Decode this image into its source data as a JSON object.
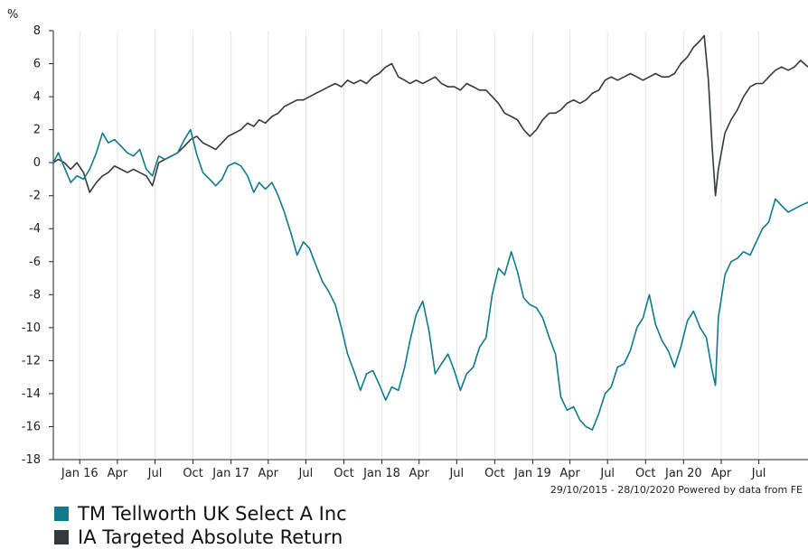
{
  "chart_data": {
    "type": "line",
    "unit_label": "%",
    "ylim": [
      -18,
      8
    ],
    "yticks": [
      8,
      6,
      4,
      2,
      0,
      -2,
      -4,
      -6,
      -8,
      -10,
      -12,
      -14,
      -16,
      -18
    ],
    "xlim": [
      "2015-10-29",
      "2020-10-28"
    ],
    "xticks": [
      {
        "date": "2016-01-01",
        "label": "Jan 16"
      },
      {
        "date": "2016-04-01",
        "label": "Apr"
      },
      {
        "date": "2016-07-01",
        "label": "Jul"
      },
      {
        "date": "2016-10-01",
        "label": "Oct"
      },
      {
        "date": "2017-01-01",
        "label": "Jan 17"
      },
      {
        "date": "2017-04-01",
        "label": "Apr"
      },
      {
        "date": "2017-07-01",
        "label": "Jul"
      },
      {
        "date": "2017-10-01",
        "label": "Oct"
      },
      {
        "date": "2018-01-01",
        "label": "Jan 18"
      },
      {
        "date": "2018-04-01",
        "label": "Apr"
      },
      {
        "date": "2018-07-01",
        "label": "Jul"
      },
      {
        "date": "2018-10-01",
        "label": "Oct"
      },
      {
        "date": "2019-01-01",
        "label": "Jan 19"
      },
      {
        "date": "2019-04-01",
        "label": "Apr"
      },
      {
        "date": "2019-07-01",
        "label": "Jul"
      },
      {
        "date": "2019-10-01",
        "label": "Oct"
      },
      {
        "date": "2020-01-01",
        "label": "Jan 20"
      },
      {
        "date": "2020-04-01",
        "label": "Apr"
      },
      {
        "date": "2020-07-01",
        "label": "Jul"
      }
    ],
    "credit": "29/10/2015 - 28/10/2020 Powered by data from FE",
    "grid": "vertical",
    "legend_position": "bottom-left",
    "series": [
      {
        "name": "TM Tellworth UK Select A Inc",
        "color": "#0e7a8c",
        "points": [
          [
            "2015-10-29",
            0.0
          ],
          [
            "2015-11-10",
            0.6
          ],
          [
            "2015-11-25",
            -0.3
          ],
          [
            "2015-12-10",
            -1.2
          ],
          [
            "2015-12-25",
            -0.8
          ],
          [
            "2016-01-10",
            -1.0
          ],
          [
            "2016-01-25",
            -0.4
          ],
          [
            "2016-02-10",
            0.6
          ],
          [
            "2016-02-25",
            1.8
          ],
          [
            "2016-03-10",
            1.2
          ],
          [
            "2016-03-25",
            1.4
          ],
          [
            "2016-04-10",
            1.0
          ],
          [
            "2016-04-25",
            0.6
          ],
          [
            "2016-05-10",
            0.4
          ],
          [
            "2016-05-25",
            0.8
          ],
          [
            "2016-06-10",
            -0.4
          ],
          [
            "2016-06-25",
            -0.8
          ],
          [
            "2016-07-10",
            0.4
          ],
          [
            "2016-07-25",
            0.2
          ],
          [
            "2016-08-10",
            0.4
          ],
          [
            "2016-08-25",
            0.6
          ],
          [
            "2016-09-10",
            1.4
          ],
          [
            "2016-09-25",
            2.0
          ],
          [
            "2016-10-10",
            0.5
          ],
          [
            "2016-10-25",
            -0.6
          ],
          [
            "2016-11-10",
            -1.0
          ],
          [
            "2016-11-25",
            -1.4
          ],
          [
            "2016-12-10",
            -1.0
          ],
          [
            "2016-12-25",
            -0.2
          ],
          [
            "2017-01-10",
            0.0
          ],
          [
            "2017-01-25",
            -0.2
          ],
          [
            "2017-02-10",
            -0.8
          ],
          [
            "2017-02-25",
            -1.8
          ],
          [
            "2017-03-10",
            -1.2
          ],
          [
            "2017-03-25",
            -1.6
          ],
          [
            "2017-04-10",
            -1.2
          ],
          [
            "2017-04-25",
            -2.0
          ],
          [
            "2017-05-10",
            -3.0
          ],
          [
            "2017-05-25",
            -4.2
          ],
          [
            "2017-06-10",
            -5.6
          ],
          [
            "2017-06-25",
            -4.8
          ],
          [
            "2017-07-10",
            -5.2
          ],
          [
            "2017-07-25",
            -6.2
          ],
          [
            "2017-08-10",
            -7.2
          ],
          [
            "2017-08-25",
            -7.8
          ],
          [
            "2017-09-10",
            -8.6
          ],
          [
            "2017-09-25",
            -10.0
          ],
          [
            "2017-10-10",
            -11.6
          ],
          [
            "2017-10-25",
            -12.6
          ],
          [
            "2017-11-10",
            -13.8
          ],
          [
            "2017-11-25",
            -12.8
          ],
          [
            "2017-12-10",
            -12.6
          ],
          [
            "2017-12-25",
            -13.4
          ],
          [
            "2018-01-10",
            -14.4
          ],
          [
            "2018-01-25",
            -13.6
          ],
          [
            "2018-02-10",
            -13.8
          ],
          [
            "2018-02-25",
            -12.4
          ],
          [
            "2018-03-10",
            -10.8
          ],
          [
            "2018-03-25",
            -9.2
          ],
          [
            "2018-04-10",
            -8.4
          ],
          [
            "2018-04-25",
            -10.2
          ],
          [
            "2018-05-10",
            -12.8
          ],
          [
            "2018-05-25",
            -12.2
          ],
          [
            "2018-06-10",
            -11.6
          ],
          [
            "2018-06-25",
            -12.6
          ],
          [
            "2018-07-10",
            -13.8
          ],
          [
            "2018-07-25",
            -12.8
          ],
          [
            "2018-08-10",
            -12.4
          ],
          [
            "2018-08-25",
            -11.2
          ],
          [
            "2018-09-10",
            -10.6
          ],
          [
            "2018-09-25",
            -8.0
          ],
          [
            "2018-10-10",
            -6.4
          ],
          [
            "2018-10-25",
            -6.8
          ],
          [
            "2018-11-10",
            -5.4
          ],
          [
            "2018-11-25",
            -6.6
          ],
          [
            "2018-12-10",
            -8.2
          ],
          [
            "2018-12-25",
            -8.6
          ],
          [
            "2019-01-10",
            -8.8
          ],
          [
            "2019-01-25",
            -9.4
          ],
          [
            "2019-02-10",
            -10.6
          ],
          [
            "2019-02-25",
            -11.6
          ],
          [
            "2019-03-10",
            -14.2
          ],
          [
            "2019-03-25",
            -15.0
          ],
          [
            "2019-04-10",
            -14.8
          ],
          [
            "2019-04-25",
            -15.6
          ],
          [
            "2019-05-10",
            -16.0
          ],
          [
            "2019-05-25",
            -16.2
          ],
          [
            "2019-06-10",
            -15.2
          ],
          [
            "2019-06-25",
            -14.0
          ],
          [
            "2019-07-10",
            -13.6
          ],
          [
            "2019-07-25",
            -12.4
          ],
          [
            "2019-08-10",
            -12.2
          ],
          [
            "2019-08-25",
            -11.4
          ],
          [
            "2019-09-10",
            -10.0
          ],
          [
            "2019-09-25",
            -9.4
          ],
          [
            "2019-10-10",
            -8.0
          ],
          [
            "2019-10-25",
            -9.8
          ],
          [
            "2019-11-10",
            -10.8
          ],
          [
            "2019-11-25",
            -11.4
          ],
          [
            "2019-12-10",
            -12.4
          ],
          [
            "2019-12-25",
            -11.2
          ],
          [
            "2020-01-10",
            -9.6
          ],
          [
            "2020-01-25",
            -9.0
          ],
          [
            "2020-02-10",
            -10.0
          ],
          [
            "2020-02-25",
            -10.6
          ],
          [
            "2020-03-10",
            -12.6
          ],
          [
            "2020-03-18",
            -13.5
          ],
          [
            "2020-03-25",
            -9.4
          ],
          [
            "2020-04-10",
            -6.8
          ],
          [
            "2020-04-25",
            -6.0
          ],
          [
            "2020-05-10",
            -5.8
          ],
          [
            "2020-05-25",
            -5.4
          ],
          [
            "2020-06-10",
            -5.6
          ],
          [
            "2020-06-25",
            -4.8
          ],
          [
            "2020-07-10",
            -4.0
          ],
          [
            "2020-07-25",
            -3.6
          ],
          [
            "2020-08-10",
            -2.2
          ],
          [
            "2020-08-25",
            -2.6
          ],
          [
            "2020-09-10",
            -3.0
          ],
          [
            "2020-09-25",
            -2.8
          ],
          [
            "2020-10-10",
            -2.6
          ],
          [
            "2020-10-28",
            -2.4
          ]
        ]
      },
      {
        "name": "IA Targeted Absolute Return",
        "color": "#333a3b",
        "points": [
          [
            "2015-10-29",
            0.0
          ],
          [
            "2015-11-10",
            0.2
          ],
          [
            "2015-11-25",
            0.0
          ],
          [
            "2015-12-10",
            -0.4
          ],
          [
            "2015-12-25",
            0.0
          ],
          [
            "2016-01-10",
            -0.6
          ],
          [
            "2016-01-25",
            -1.8
          ],
          [
            "2016-02-10",
            -1.2
          ],
          [
            "2016-02-25",
            -0.8
          ],
          [
            "2016-03-10",
            -0.6
          ],
          [
            "2016-03-25",
            -0.2
          ],
          [
            "2016-04-10",
            -0.4
          ],
          [
            "2016-04-25",
            -0.6
          ],
          [
            "2016-05-10",
            -0.4
          ],
          [
            "2016-05-25",
            -0.6
          ],
          [
            "2016-06-10",
            -0.8
          ],
          [
            "2016-06-25",
            -1.4
          ],
          [
            "2016-07-10",
            0.0
          ],
          [
            "2016-07-25",
            0.2
          ],
          [
            "2016-08-10",
            0.4
          ],
          [
            "2016-08-25",
            0.6
          ],
          [
            "2016-09-10",
            1.0
          ],
          [
            "2016-09-25",
            1.4
          ],
          [
            "2016-10-10",
            1.6
          ],
          [
            "2016-10-25",
            1.2
          ],
          [
            "2016-11-10",
            1.0
          ],
          [
            "2016-11-25",
            0.8
          ],
          [
            "2016-12-10",
            1.2
          ],
          [
            "2016-12-25",
            1.6
          ],
          [
            "2017-01-10",
            1.8
          ],
          [
            "2017-01-25",
            2.0
          ],
          [
            "2017-02-10",
            2.4
          ],
          [
            "2017-02-25",
            2.2
          ],
          [
            "2017-03-10",
            2.6
          ],
          [
            "2017-03-25",
            2.4
          ],
          [
            "2017-04-10",
            2.8
          ],
          [
            "2017-04-25",
            3.0
          ],
          [
            "2017-05-10",
            3.4
          ],
          [
            "2017-05-25",
            3.6
          ],
          [
            "2017-06-10",
            3.8
          ],
          [
            "2017-06-25",
            3.8
          ],
          [
            "2017-07-10",
            4.0
          ],
          [
            "2017-07-25",
            4.2
          ],
          [
            "2017-08-10",
            4.4
          ],
          [
            "2017-08-25",
            4.6
          ],
          [
            "2017-09-10",
            4.8
          ],
          [
            "2017-09-25",
            4.6
          ],
          [
            "2017-10-10",
            5.0
          ],
          [
            "2017-10-25",
            4.8
          ],
          [
            "2017-11-10",
            5.0
          ],
          [
            "2017-11-25",
            4.8
          ],
          [
            "2017-12-10",
            5.2
          ],
          [
            "2017-12-25",
            5.4
          ],
          [
            "2018-01-10",
            5.8
          ],
          [
            "2018-01-25",
            6.0
          ],
          [
            "2018-02-10",
            5.2
          ],
          [
            "2018-02-25",
            5.0
          ],
          [
            "2018-03-10",
            4.8
          ],
          [
            "2018-03-25",
            5.0
          ],
          [
            "2018-04-10",
            4.8
          ],
          [
            "2018-04-25",
            5.0
          ],
          [
            "2018-05-10",
            5.2
          ],
          [
            "2018-05-25",
            4.8
          ],
          [
            "2018-06-10",
            4.6
          ],
          [
            "2018-06-25",
            4.6
          ],
          [
            "2018-07-10",
            4.4
          ],
          [
            "2018-07-25",
            4.8
          ],
          [
            "2018-08-10",
            4.6
          ],
          [
            "2018-08-25",
            4.4
          ],
          [
            "2018-09-10",
            4.4
          ],
          [
            "2018-09-25",
            4.0
          ],
          [
            "2018-10-10",
            3.6
          ],
          [
            "2018-10-25",
            3.0
          ],
          [
            "2018-11-10",
            2.8
          ],
          [
            "2018-11-25",
            2.6
          ],
          [
            "2018-12-10",
            2.0
          ],
          [
            "2018-12-25",
            1.6
          ],
          [
            "2019-01-10",
            2.0
          ],
          [
            "2019-01-25",
            2.6
          ],
          [
            "2019-02-10",
            3.0
          ],
          [
            "2019-02-25",
            3.0
          ],
          [
            "2019-03-10",
            3.2
          ],
          [
            "2019-03-25",
            3.6
          ],
          [
            "2019-04-10",
            3.8
          ],
          [
            "2019-04-25",
            3.6
          ],
          [
            "2019-05-10",
            3.8
          ],
          [
            "2019-05-25",
            4.2
          ],
          [
            "2019-06-10",
            4.4
          ],
          [
            "2019-06-25",
            5.0
          ],
          [
            "2019-07-10",
            5.2
          ],
          [
            "2019-07-25",
            5.0
          ],
          [
            "2019-08-10",
            5.2
          ],
          [
            "2019-08-25",
            5.4
          ],
          [
            "2019-09-10",
            5.2
          ],
          [
            "2019-09-25",
            5.0
          ],
          [
            "2019-10-10",
            5.2
          ],
          [
            "2019-10-25",
            5.4
          ],
          [
            "2019-11-10",
            5.2
          ],
          [
            "2019-11-25",
            5.2
          ],
          [
            "2019-12-10",
            5.4
          ],
          [
            "2019-12-25",
            6.0
          ],
          [
            "2020-01-10",
            6.4
          ],
          [
            "2020-01-25",
            7.0
          ],
          [
            "2020-02-10",
            7.4
          ],
          [
            "2020-02-20",
            7.7
          ],
          [
            "2020-03-01",
            5.0
          ],
          [
            "2020-03-10",
            1.0
          ],
          [
            "2020-03-18",
            -2.0
          ],
          [
            "2020-03-25",
            -0.4
          ],
          [
            "2020-04-10",
            1.8
          ],
          [
            "2020-04-25",
            2.6
          ],
          [
            "2020-05-10",
            3.2
          ],
          [
            "2020-05-25",
            4.0
          ],
          [
            "2020-06-10",
            4.6
          ],
          [
            "2020-06-25",
            4.8
          ],
          [
            "2020-07-10",
            4.8
          ],
          [
            "2020-07-25",
            5.2
          ],
          [
            "2020-08-10",
            5.6
          ],
          [
            "2020-08-25",
            5.8
          ],
          [
            "2020-09-10",
            5.6
          ],
          [
            "2020-09-25",
            5.8
          ],
          [
            "2020-10-10",
            6.2
          ],
          [
            "2020-10-28",
            5.8
          ]
        ]
      }
    ]
  }
}
